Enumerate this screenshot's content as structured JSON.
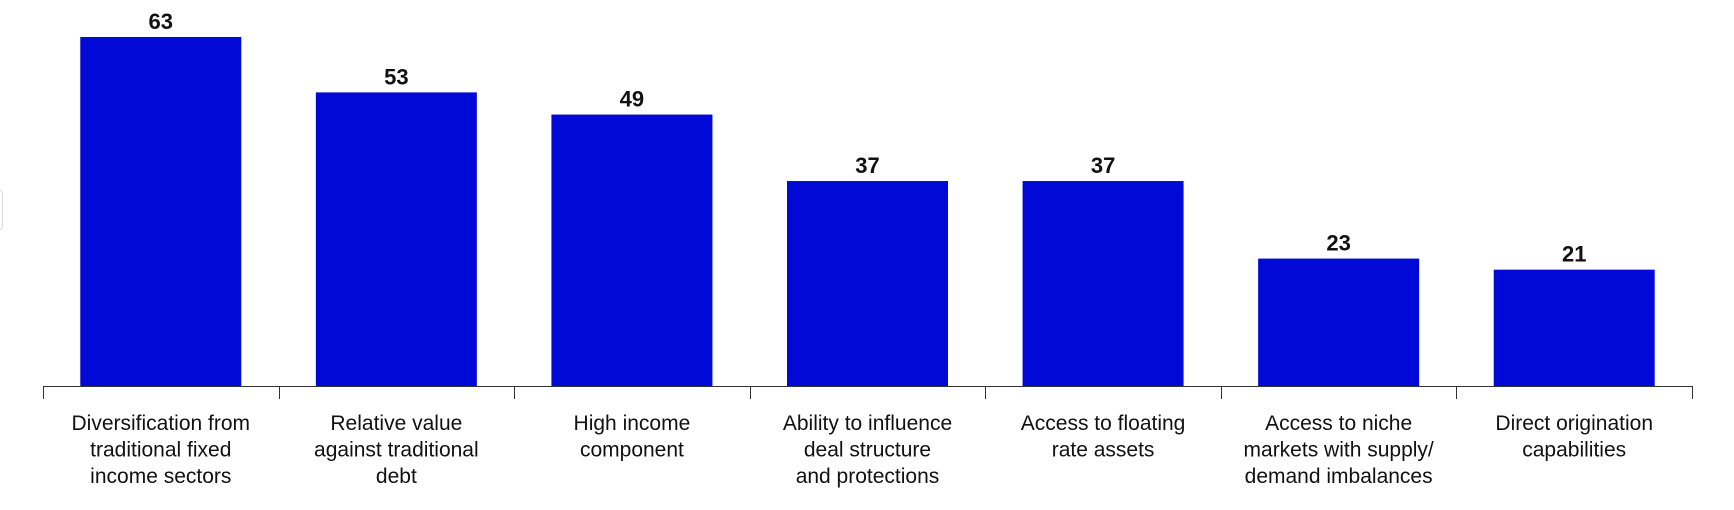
{
  "chart_data": {
    "type": "bar",
    "categories": [
      [
        "Diversification from",
        "traditional fixed",
        "income sectors"
      ],
      [
        "Relative value",
        "against traditional",
        "debt"
      ],
      [
        "High income",
        "component"
      ],
      [
        "Ability to influence",
        "deal structure",
        "and protections"
      ],
      [
        "Access to floating",
        "rate assets"
      ],
      [
        "Access to niche",
        "markets with supply/",
        "demand imbalances"
      ],
      [
        "Direct origination",
        "capabilities"
      ]
    ],
    "values": [
      63,
      53,
      49,
      37,
      37,
      23,
      21
    ],
    "ylim": [
      0,
      70
    ],
    "grid": false,
    "bar_color": "#0009d6"
  }
}
